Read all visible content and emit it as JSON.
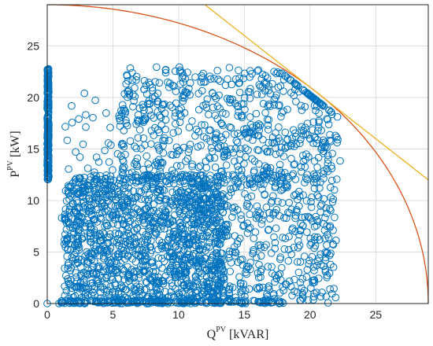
{
  "chart_data": {
    "type": "scatter",
    "title": "",
    "xlabel": {
      "base": "Q",
      "sup": "PV",
      "unit": " [kVAR]"
    },
    "ylabel": {
      "base": "P",
      "sup": "PV",
      "unit": " [kW]"
    },
    "xlim": [
      0,
      29
    ],
    "ylim": [
      0,
      29
    ],
    "xticks": [
      "0",
      "5",
      "10",
      "15",
      "20",
      "25"
    ],
    "yticks": [
      "0",
      "5",
      "10",
      "15",
      "20",
      "25"
    ],
    "grid": true,
    "colors": {
      "points": "#0072bd",
      "circle": "#d95319",
      "tangent": "#edb120"
    },
    "curves": {
      "capability_circle_radius": 29,
      "tangent_line": [
        [
          12,
          29
        ],
        [
          29,
          12
        ]
      ]
    },
    "series": [
      {
        "marker": "circle",
        "clusters": [
          {
            "count": 260,
            "x": [
              0,
              0.12
            ],
            "y": [
              12,
              22.8
            ]
          },
          {
            "count": 650,
            "x": [
              5.5,
              22.3
            ],
            "y": [
              12,
              23
            ]
          },
          {
            "count": 1300,
            "x": [
              1.3,
              13.5
            ],
            "y": [
              0,
              12.5
            ]
          },
          {
            "count": 520,
            "x": [
              10,
              22
            ],
            "y": [
              0,
              12.5
            ]
          },
          {
            "count": 180,
            "x": [
              1,
              18
            ],
            "y": [
              0,
              0.3
            ]
          },
          {
            "count": 40,
            "x": [
              1.2,
              6
            ],
            "y": [
              11,
              20.5
            ]
          }
        ],
        "isolated_points": [
          [
            0,
            0
          ],
          [
            0.9,
            0
          ],
          [
            1.1,
            8.3
          ],
          [
            1.5,
            6.3
          ]
        ]
      }
    ]
  }
}
